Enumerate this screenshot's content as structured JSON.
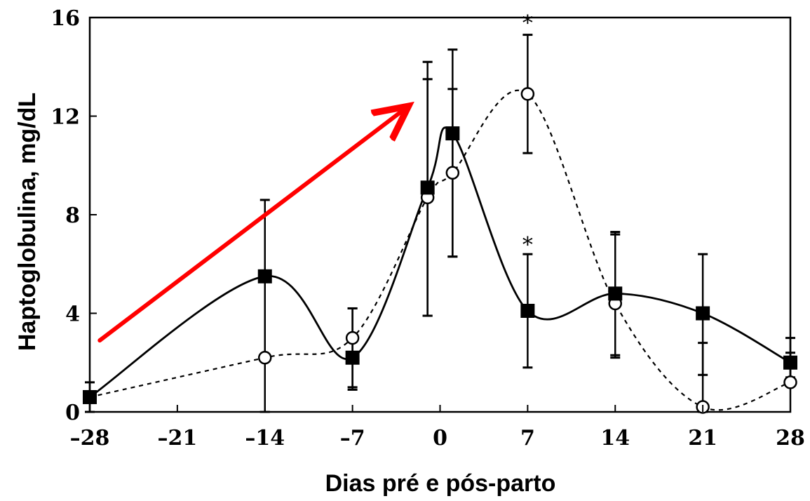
{
  "chart_data": {
    "type": "line",
    "xlabel": "Dias pré e pós-parto",
    "ylabel": "Haptoglobulina, mg/dL",
    "x_ticks": [
      -28,
      -21,
      -14,
      -7,
      0,
      7,
      14,
      21,
      28
    ],
    "x_tick_labels": [
      "–28",
      "–21",
      "–14",
      "–7",
      "0",
      "7",
      "14",
      "21",
      "28"
    ],
    "y_ticks": [
      0,
      4,
      8,
      12,
      16
    ],
    "y_tick_labels": [
      "0",
      "4",
      "8",
      "12",
      "16"
    ],
    "xlim": [
      -28,
      28
    ],
    "ylim": [
      0,
      16
    ],
    "grid": false,
    "series": [
      {
        "marker": "filled-square",
        "line_style": "solid",
        "x": [
          -28,
          -14,
          -7,
          -1,
          1,
          7,
          14,
          21,
          28
        ],
        "y": [
          0.6,
          5.5,
          2.2,
          9.1,
          11.3,
          4.1,
          4.8,
          4.0,
          2.0
        ],
        "err_low": [
          0.6,
          5.5,
          1.2,
          5.2,
          5.0,
          2.3,
          2.5,
          2.5,
          0.6
        ],
        "err_high": [
          0.6,
          3.1,
          2.0,
          4.4,
          3.4,
          2.3,
          2.5,
          2.4,
          1.0
        ]
      },
      {
        "marker": "open-circle",
        "line_style": "dashed",
        "x": [
          -28,
          -14,
          -7,
          -1,
          1,
          7,
          14,
          21,
          28
        ],
        "y": [
          0.6,
          2.2,
          3.0,
          8.7,
          9.7,
          12.9,
          4.4,
          0.2,
          1.2
        ],
        "err_low": [
          0.0,
          2.2,
          2.1,
          4.8,
          3.4,
          2.4,
          2.2,
          0.2,
          0.0
        ],
        "err_high": [
          0.0,
          0.0,
          1.2,
          5.5,
          3.4,
          2.4,
          2.8,
          2.6,
          1.2
        ]
      }
    ],
    "significance_marks": [
      {
        "x": 7,
        "y": 16,
        "text": "*"
      },
      {
        "x": 7,
        "y": 7.0,
        "text": "*"
      }
    ],
    "arrow": {
      "color": "#ff0000",
      "from": {
        "x": -27.2,
        "y": 2.9
      },
      "to": {
        "x": -2.8,
        "y": 12.3
      }
    }
  }
}
